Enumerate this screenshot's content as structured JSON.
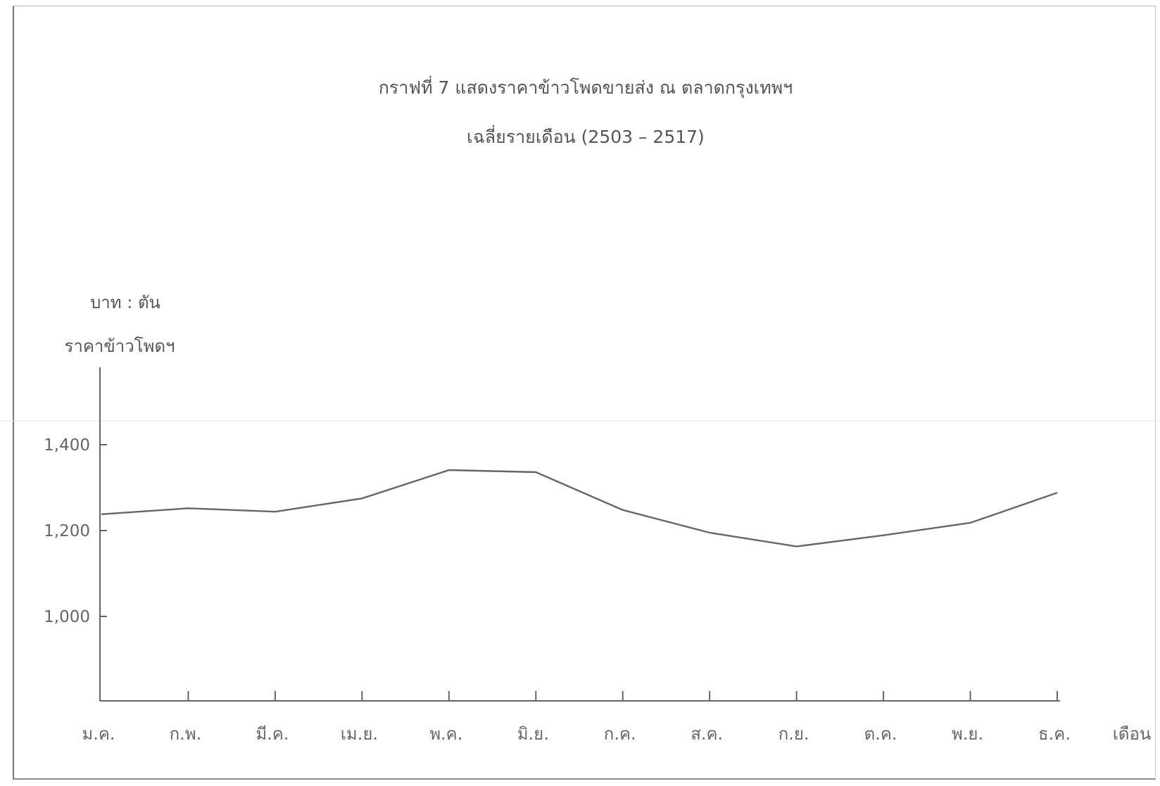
{
  "chart_data": {
    "type": "line",
    "title": "กราฟที่ 7  แสดงราคาข้าวโพดขายส่ง ณ ตลาดกรุงเทพฯ",
    "subtitle": "เฉลี่ยรายเดือน (2503 – 2517)",
    "ylabel_unit": "บาท : ตัน",
    "ylabel": "ราคาข้าวโพดฯ",
    "xlabel": "เดือน",
    "categories": [
      "ม.ค.",
      "ก.พ.",
      "มี.ค.",
      "เม.ย.",
      "พ.ค.",
      "มิ.ย.",
      "ก.ค.",
      "ส.ค.",
      "ก.ย.",
      "ต.ค.",
      "พ.ย.",
      "ธ.ค."
    ],
    "yticks": [
      1000,
      1200,
      1400
    ],
    "ytick_labels": [
      "1,000",
      "1,200",
      "1,400"
    ],
    "ylim": [
      800,
      1400
    ],
    "series": [
      {
        "values": [
          1238,
          1252,
          1244,
          1275,
          1341,
          1336,
          1248,
          1195,
          1163,
          1189,
          1218,
          1288
        ]
      }
    ],
    "grid": false,
    "legend": "none"
  }
}
